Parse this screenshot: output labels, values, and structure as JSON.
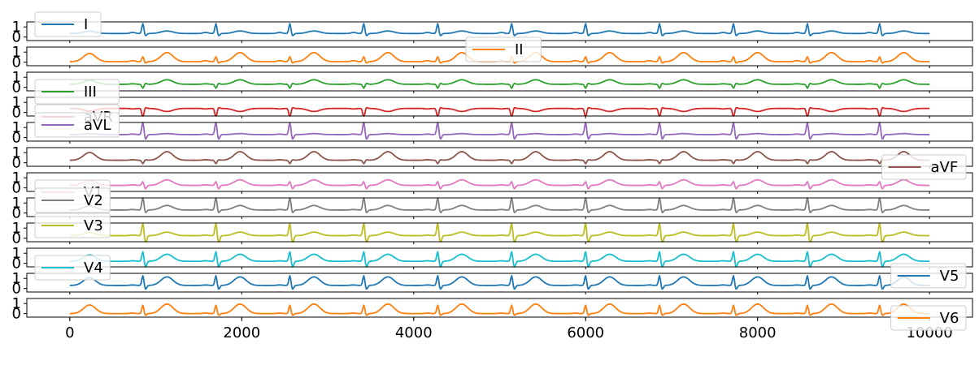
{
  "chart_data": {
    "type": "line",
    "title": "",
    "xlabel": "",
    "ylabel": "",
    "xlim": [
      -500,
      10500
    ],
    "x_ticks": [
      0,
      2000,
      4000,
      6000,
      8000,
      10000
    ],
    "y_ticks": [
      0,
      1
    ],
    "ylim": [
      -0.35,
      1.5
    ],
    "grid": false,
    "sample_interval": 10,
    "sample_count": 1001,
    "beat_positions": [
      850,
      1700,
      2560,
      3420,
      4280,
      5140,
      6000,
      6860,
      7720,
      8580,
      9420
    ],
    "series": [
      {
        "name": "I",
        "color": "#1f77b4",
        "baseline": 0.35,
        "qrs": 1.0,
        "s_wave": -0.25,
        "p_wave": 0.1,
        "t_wave": 0.25,
        "legend_position": "upper-left"
      },
      {
        "name": "II",
        "color": "#ff7f0e",
        "baseline": 0.05,
        "qrs": 0.5,
        "s_wave": -0.15,
        "p_wave": 0.1,
        "t_wave": 0.9,
        "legend_position": "upper-center"
      },
      {
        "name": "III",
        "color": "#2ca02c",
        "baseline": 0.3,
        "qrs": -0.4,
        "s_wave": 0.1,
        "p_wave": 0.05,
        "t_wave": 0.45,
        "legend_position": "lower-left"
      },
      {
        "name": "aVR",
        "color": "#d62728",
        "baseline": 0.4,
        "qrs": -0.9,
        "s_wave": 0.1,
        "p_wave": -0.05,
        "t_wave": -0.3,
        "legend_position": "lower-left"
      },
      {
        "name": "aVL",
        "color": "#9467bd",
        "baseline": 0.3,
        "qrs": 1.3,
        "s_wave": -0.5,
        "p_wave": 0.05,
        "t_wave": 0.1,
        "legend_position": "upper-left"
      },
      {
        "name": "aVF",
        "color": "#8c564b",
        "baseline": 0.25,
        "qrs": -0.35,
        "s_wave": 0.05,
        "p_wave": 0.05,
        "t_wave": 0.85,
        "legend_position": "lower-right"
      },
      {
        "name": "V1",
        "color": "#e377c2",
        "baseline": 0.25,
        "qrs": 0.4,
        "s_wave": -0.35,
        "p_wave": 0.05,
        "t_wave": 0.55,
        "legend_position": "lower-left"
      },
      {
        "name": "V2",
        "color": "#7f7f7f",
        "baseline": 0.3,
        "qrs": 1.3,
        "s_wave": -0.3,
        "p_wave": 0.05,
        "t_wave": 0.45,
        "legend_position": "upper-left"
      },
      {
        "name": "V3",
        "color": "#bcbd22",
        "baseline": 0.25,
        "qrs": 1.3,
        "s_wave": -0.8,
        "p_wave": 0.05,
        "t_wave": 0.35,
        "legend_position": "upper-left"
      },
      {
        "name": "V4",
        "color": "#17becf",
        "baseline": 0.2,
        "qrs": 1.0,
        "s_wave": -0.6,
        "p_wave": 0.05,
        "t_wave": 0.7,
        "legend_position": "lower-left"
      },
      {
        "name": "V5",
        "color": "#1f77b4",
        "baseline": 0.3,
        "qrs": 1.0,
        "s_wave": -0.4,
        "p_wave": 0.05,
        "t_wave": 0.85,
        "legend_position": "upper-right"
      },
      {
        "name": "V6",
        "color": "#ff7f0e",
        "baseline": 0.0,
        "qrs": 0.85,
        "s_wave": -0.2,
        "p_wave": 0.05,
        "t_wave": 0.95,
        "legend_position": "lower-right"
      }
    ]
  }
}
